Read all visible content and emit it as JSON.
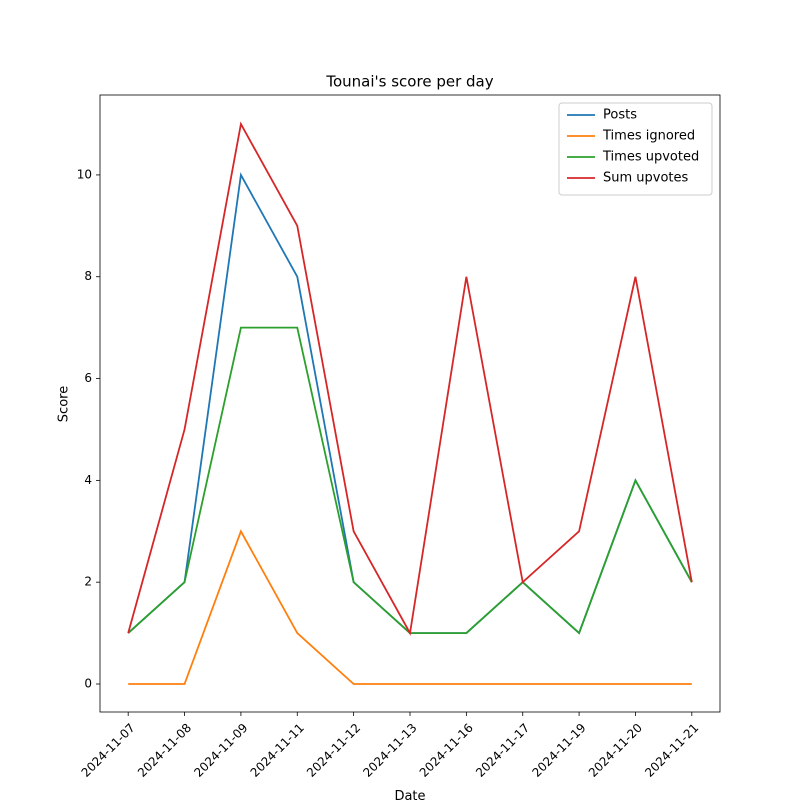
{
  "chart_data": {
    "type": "line",
    "title": "Tounai's score per day",
    "x_label": "Date",
    "y_label": "Score",
    "categories": [
      "2024-11-07",
      "2024-11-08",
      "2024-11-09",
      "2024-11-11",
      "2024-11-12",
      "2024-11-13",
      "2024-11-16",
      "2024-11-17",
      "2024-11-19",
      "2024-11-20",
      "2024-11-21"
    ],
    "series": [
      {
        "name": "Posts",
        "color": "#1f77b4",
        "values": [
          1,
          2,
          10,
          8,
          2,
          1,
          1,
          2,
          1,
          4,
          2
        ]
      },
      {
        "name": "Times ignored",
        "color": "#ff7f0e",
        "values": [
          0,
          0,
          3,
          1,
          0,
          0,
          0,
          0,
          0,
          0,
          0
        ]
      },
      {
        "name": "Times upvoted",
        "color": "#2ca02c",
        "values": [
          1,
          2,
          7,
          7,
          2,
          1,
          1,
          2,
          1,
          4,
          2
        ]
      },
      {
        "name": "Sum upvotes",
        "color": "#d62728",
        "values": [
          1,
          5,
          11,
          9,
          3,
          1,
          8,
          2,
          3,
          8,
          2
        ]
      }
    ],
    "ylim": [
      -0.55,
      11.57
    ],
    "yticks": [
      0,
      2,
      4,
      6,
      8,
      10
    ],
    "legend": "upper right",
    "grid": false
  }
}
